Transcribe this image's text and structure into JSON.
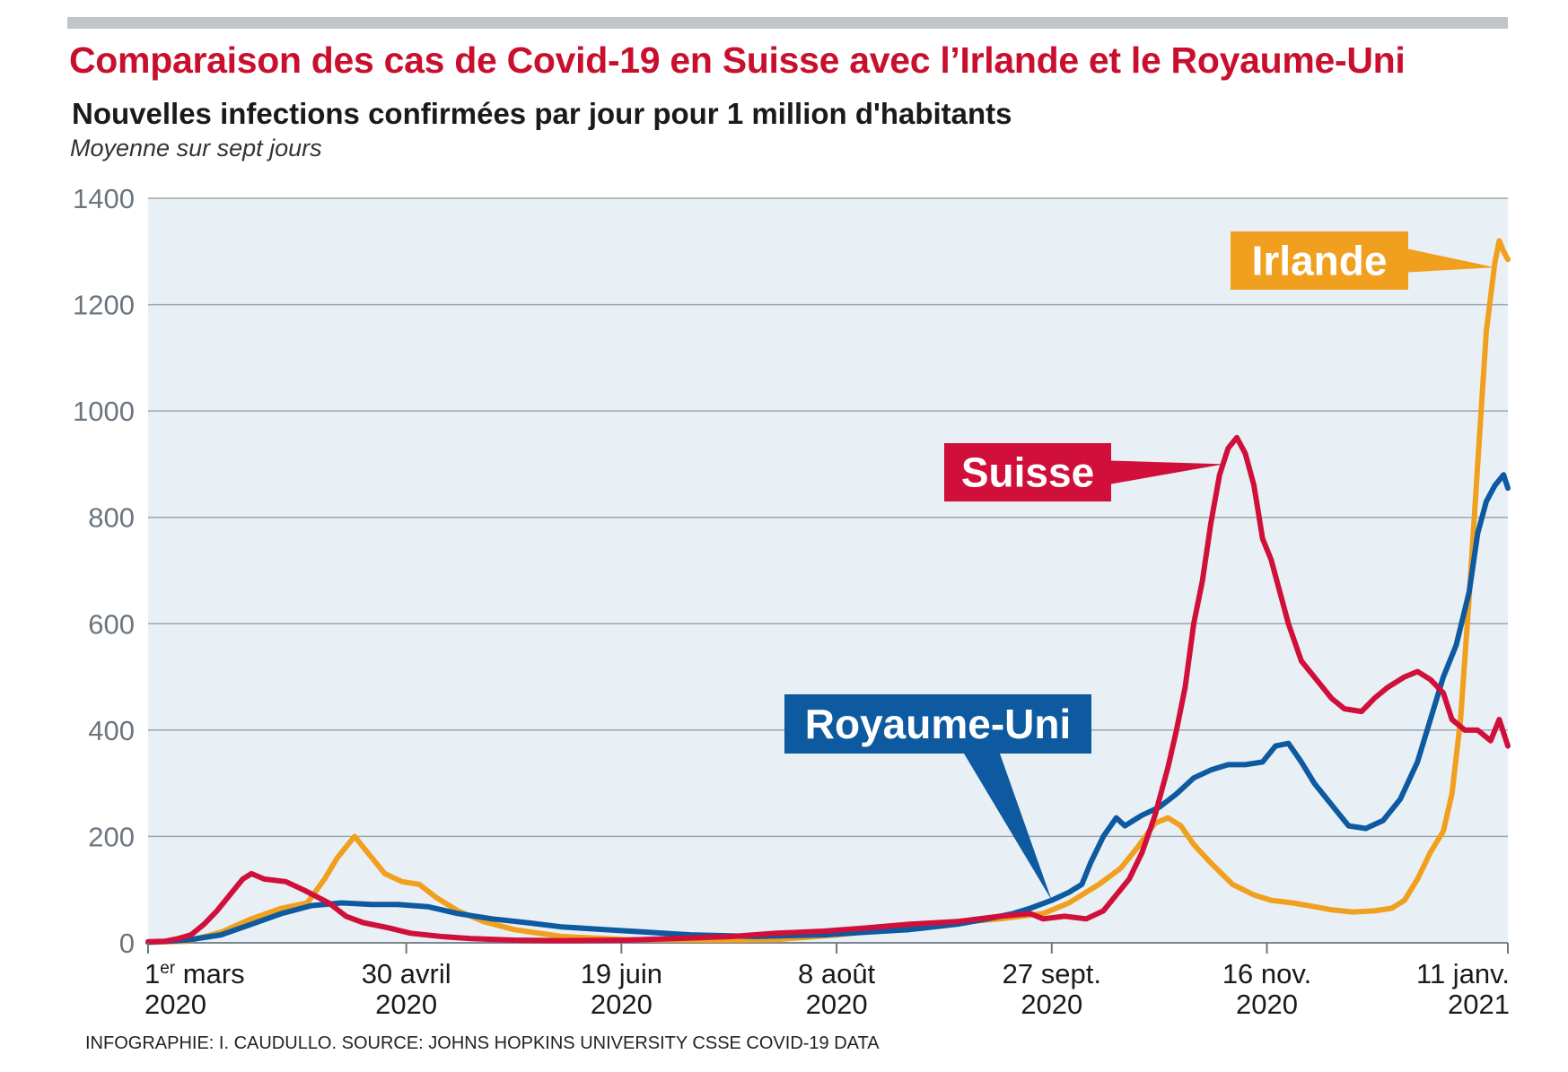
{
  "title": "Comparaison des cas de Covid-19 en Suisse avec l’Irlande et le Royaume-Uni",
  "subtitle": "Nouvelles infections confirmées par jour pour 1 million d'habitants",
  "note": "Moyenne sur sept jours",
  "source": "INFOGRAPHIE: I. CAUDULLO. SOURCE: JOHNS HOPKINS UNIVERSITY CSSE COVID-19 DATA",
  "colors": {
    "suisse": "#d0103a",
    "irlande": "#f0a01e",
    "royaume_uni": "#0d5aa0",
    "plot_bg": "#e9f0f5",
    "grid": "#9aa6ae",
    "axis_text": "#6b7680",
    "title": "#c8102e"
  },
  "chart_data": {
    "type": "line",
    "title": "Comparaison des cas de Covid-19 en Suisse avec l’Irlande et le Royaume-Uni",
    "ylabel": "",
    "xlabel": "",
    "ylim": [
      0,
      1400
    ],
    "xlim": [
      "2020-03-01",
      "2021-01-11"
    ],
    "yticks": [
      "0",
      "200",
      "400",
      "600",
      "800",
      "1000",
      "1200",
      "1400"
    ],
    "xticks": [
      {
        "date": "2020-03-01",
        "line1": "1er mars",
        "line1_main": "1",
        "line1_sup": "er",
        "line1_rest": " mars",
        "line2": "2020"
      },
      {
        "date": "2020-04-30",
        "line1": "30 avril",
        "line2": "2020"
      },
      {
        "date": "2020-06-19",
        "line1": "19 juin",
        "line2": "2020"
      },
      {
        "date": "2020-08-08",
        "line1": "8 août",
        "line2": "2020"
      },
      {
        "date": "2020-09-27",
        "line1": "27 sept.",
        "line2": "2020"
      },
      {
        "date": "2020-11-16",
        "line1": "16 nov.",
        "line2": "2020"
      },
      {
        "date": "2021-01-11",
        "line1": "11 janv.",
        "line2": "2021"
      }
    ],
    "grid": true,
    "series": [
      {
        "name": "Suisse",
        "key": "suisse",
        "points": [
          [
            "2020-03-01",
            2
          ],
          [
            "2020-03-05",
            3
          ],
          [
            "2020-03-08",
            8
          ],
          [
            "2020-03-11",
            15
          ],
          [
            "2020-03-14",
            35
          ],
          [
            "2020-03-17",
            60
          ],
          [
            "2020-03-20",
            90
          ],
          [
            "2020-03-23",
            120
          ],
          [
            "2020-03-25",
            130
          ],
          [
            "2020-03-28",
            120
          ],
          [
            "2020-04-02",
            115
          ],
          [
            "2020-04-06",
            100
          ],
          [
            "2020-04-12",
            75
          ],
          [
            "2020-04-16",
            50
          ],
          [
            "2020-04-20",
            38
          ],
          [
            "2020-04-26",
            28
          ],
          [
            "2020-05-01",
            18
          ],
          [
            "2020-05-08",
            12
          ],
          [
            "2020-05-15",
            8
          ],
          [
            "2020-05-25",
            5
          ],
          [
            "2020-06-05",
            4
          ],
          [
            "2020-06-20",
            5
          ],
          [
            "2020-07-01",
            8
          ],
          [
            "2020-07-15",
            12
          ],
          [
            "2020-07-25",
            18
          ],
          [
            "2020-08-05",
            22
          ],
          [
            "2020-08-15",
            28
          ],
          [
            "2020-08-25",
            35
          ],
          [
            "2020-09-05",
            40
          ],
          [
            "2020-09-15",
            50
          ],
          [
            "2020-09-22",
            55
          ],
          [
            "2020-09-25",
            45
          ],
          [
            "2020-09-30",
            50
          ],
          [
            "2020-10-05",
            45
          ],
          [
            "2020-10-09",
            60
          ],
          [
            "2020-10-12",
            90
          ],
          [
            "2020-10-15",
            120
          ],
          [
            "2020-10-18",
            170
          ],
          [
            "2020-10-21",
            240
          ],
          [
            "2020-10-24",
            330
          ],
          [
            "2020-10-26",
            400
          ],
          [
            "2020-10-28",
            480
          ],
          [
            "2020-10-30",
            600
          ],
          [
            "2020-11-01",
            680
          ],
          [
            "2020-11-03",
            790
          ],
          [
            "2020-11-05",
            880
          ],
          [
            "2020-11-07",
            930
          ],
          [
            "2020-11-09",
            950
          ],
          [
            "2020-11-11",
            920
          ],
          [
            "2020-11-13",
            860
          ],
          [
            "2020-11-15",
            760
          ],
          [
            "2020-11-17",
            720
          ],
          [
            "2020-11-19",
            660
          ],
          [
            "2020-11-21",
            600
          ],
          [
            "2020-11-24",
            530
          ],
          [
            "2020-11-28",
            490
          ],
          [
            "2020-12-01",
            460
          ],
          [
            "2020-12-04",
            440
          ],
          [
            "2020-12-08",
            435
          ],
          [
            "2020-12-11",
            460
          ],
          [
            "2020-12-14",
            480
          ],
          [
            "2020-12-18",
            500
          ],
          [
            "2020-12-21",
            510
          ],
          [
            "2020-12-24",
            495
          ],
          [
            "2020-12-27",
            470
          ],
          [
            "2020-12-29",
            420
          ],
          [
            "2021-01-01",
            400
          ],
          [
            "2021-01-04",
            400
          ],
          [
            "2021-01-07",
            380
          ],
          [
            "2021-01-09",
            420
          ],
          [
            "2021-01-11",
            370
          ]
        ]
      },
      {
        "name": "Irlande",
        "key": "irlande",
        "points": [
          [
            "2020-03-01",
            1
          ],
          [
            "2020-03-10",
            3
          ],
          [
            "2020-03-18",
            20
          ],
          [
            "2020-03-25",
            45
          ],
          [
            "2020-04-01",
            65
          ],
          [
            "2020-04-07",
            75
          ],
          [
            "2020-04-11",
            120
          ],
          [
            "2020-04-14",
            160
          ],
          [
            "2020-04-18",
            200
          ],
          [
            "2020-04-21",
            170
          ],
          [
            "2020-04-25",
            130
          ],
          [
            "2020-04-29",
            115
          ],
          [
            "2020-05-03",
            110
          ],
          [
            "2020-05-07",
            85
          ],
          [
            "2020-05-12",
            60
          ],
          [
            "2020-05-18",
            40
          ],
          [
            "2020-05-25",
            25
          ],
          [
            "2020-06-05",
            12
          ],
          [
            "2020-06-20",
            6
          ],
          [
            "2020-07-10",
            5
          ],
          [
            "2020-07-25",
            6
          ],
          [
            "2020-08-08",
            15
          ],
          [
            "2020-08-20",
            25
          ],
          [
            "2020-09-01",
            35
          ],
          [
            "2020-09-15",
            45
          ],
          [
            "2020-09-25",
            55
          ],
          [
            "2020-10-01",
            75
          ],
          [
            "2020-10-08",
            110
          ],
          [
            "2020-10-13",
            140
          ],
          [
            "2020-10-17",
            180
          ],
          [
            "2020-10-21",
            225
          ],
          [
            "2020-10-24",
            235
          ],
          [
            "2020-10-27",
            220
          ],
          [
            "2020-10-30",
            185
          ],
          [
            "2020-11-03",
            150
          ],
          [
            "2020-11-08",
            110
          ],
          [
            "2020-11-13",
            90
          ],
          [
            "2020-11-17",
            80
          ],
          [
            "2020-11-22",
            75
          ],
          [
            "2020-11-27",
            68
          ],
          [
            "2020-12-01",
            62
          ],
          [
            "2020-12-06",
            58
          ],
          [
            "2020-12-11",
            60
          ],
          [
            "2020-12-15",
            65
          ],
          [
            "2020-12-18",
            80
          ],
          [
            "2020-12-21",
            120
          ],
          [
            "2020-12-24",
            170
          ],
          [
            "2020-12-27",
            210
          ],
          [
            "2020-12-29",
            280
          ],
          [
            "2020-12-31",
            420
          ],
          [
            "2021-01-02",
            650
          ],
          [
            "2021-01-04",
            900
          ],
          [
            "2021-01-06",
            1150
          ],
          [
            "2021-01-08",
            1280
          ],
          [
            "2021-01-09",
            1320
          ],
          [
            "2021-01-10",
            1300
          ],
          [
            "2021-01-11",
            1285
          ]
        ]
      },
      {
        "name": "Royaume-Uni",
        "key": "royaume_uni",
        "points": [
          [
            "2020-03-01",
            1
          ],
          [
            "2020-03-10",
            5
          ],
          [
            "2020-03-18",
            15
          ],
          [
            "2020-03-25",
            35
          ],
          [
            "2020-04-01",
            55
          ],
          [
            "2020-04-08",
            70
          ],
          [
            "2020-04-15",
            75
          ],
          [
            "2020-04-22",
            72
          ],
          [
            "2020-04-28",
            72
          ],
          [
            "2020-05-05",
            68
          ],
          [
            "2020-05-12",
            55
          ],
          [
            "2020-05-20",
            45
          ],
          [
            "2020-05-28",
            38
          ],
          [
            "2020-06-05",
            30
          ],
          [
            "2020-06-15",
            25
          ],
          [
            "2020-06-25",
            20
          ],
          [
            "2020-07-05",
            15
          ],
          [
            "2020-07-20",
            12
          ],
          [
            "2020-08-05",
            15
          ],
          [
            "2020-08-15",
            20
          ],
          [
            "2020-08-25",
            25
          ],
          [
            "2020-09-05",
            35
          ],
          [
            "2020-09-12",
            45
          ],
          [
            "2020-09-18",
            55
          ],
          [
            "2020-09-22",
            65
          ],
          [
            "2020-09-27",
            80
          ],
          [
            "2020-10-01",
            95
          ],
          [
            "2020-10-04",
            110
          ],
          [
            "2020-10-06",
            150
          ],
          [
            "2020-10-09",
            200
          ],
          [
            "2020-10-12",
            235
          ],
          [
            "2020-10-14",
            220
          ],
          [
            "2020-10-18",
            240
          ],
          [
            "2020-10-22",
            255
          ],
          [
            "2020-10-26",
            280
          ],
          [
            "2020-10-30",
            310
          ],
          [
            "2020-11-03",
            325
          ],
          [
            "2020-11-07",
            335
          ],
          [
            "2020-11-11",
            335
          ],
          [
            "2020-11-15",
            340
          ],
          [
            "2020-11-18",
            370
          ],
          [
            "2020-11-21",
            375
          ],
          [
            "2020-11-24",
            340
          ],
          [
            "2020-11-27",
            300
          ],
          [
            "2020-12-01",
            260
          ],
          [
            "2020-12-05",
            220
          ],
          [
            "2020-12-09",
            215
          ],
          [
            "2020-12-13",
            230
          ],
          [
            "2020-12-17",
            270
          ],
          [
            "2020-12-21",
            340
          ],
          [
            "2020-12-24",
            420
          ],
          [
            "2020-12-27",
            500
          ],
          [
            "2020-12-30",
            560
          ],
          [
            "2021-01-02",
            660
          ],
          [
            "2021-01-04",
            770
          ],
          [
            "2021-01-06",
            830
          ],
          [
            "2021-01-08",
            860
          ],
          [
            "2021-01-10",
            880
          ],
          [
            "2021-01-11",
            855
          ]
        ]
      }
    ],
    "labels": [
      {
        "text": "Irlande",
        "series": "irlande",
        "pointer_date": "2021-01-08",
        "pointer_value": 1270
      },
      {
        "text": "Suisse",
        "series": "suisse",
        "pointer_date": "2020-11-06",
        "pointer_value": 900
      },
      {
        "text": "Royaume-Uni",
        "series": "royaume_uni",
        "pointer_date": "2020-09-27",
        "pointer_value": 80
      }
    ]
  }
}
